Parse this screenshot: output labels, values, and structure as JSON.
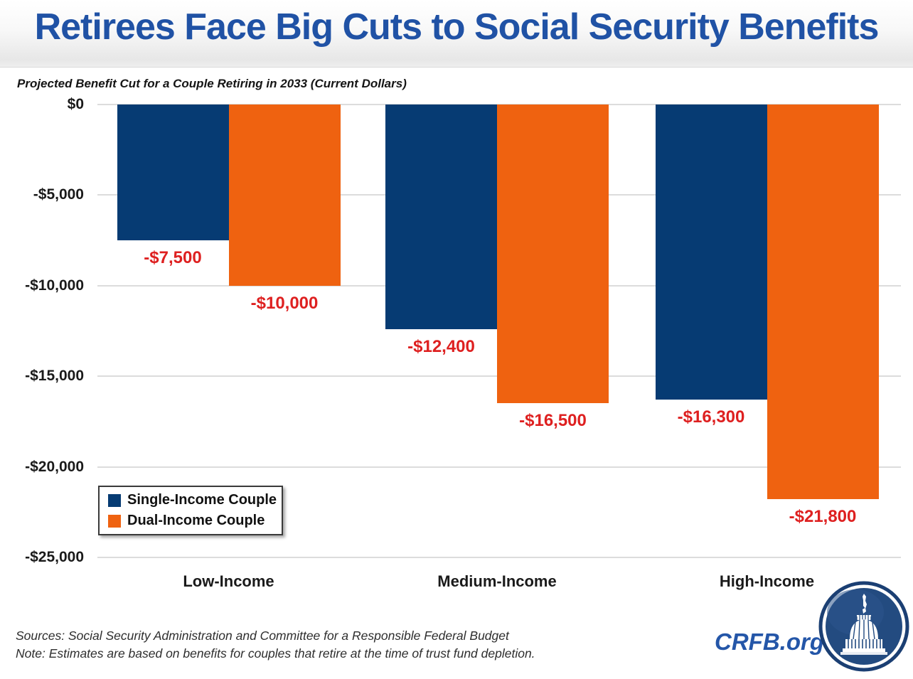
{
  "header": {
    "title": "Retirees Face Big Cuts to Social Security Benefits"
  },
  "subtitle": "Projected Benefit Cut for a Couple Retiring in 2033 (Current Dollars)",
  "footer": {
    "sources": "Sources: Social Security Administration and Committee for a Responsible Federal Budget",
    "note": "Note: Estimates are based on benefits for couples that retire at the time of trust fund depletion."
  },
  "branding": {
    "site": "CRFB.org",
    "logo_icon": "capitol-dome-icon"
  },
  "colors": {
    "title_blue": "#2052A5",
    "bar_blue": "#063B73",
    "bar_orange": "#EF6210",
    "value_label_red": "#DE2020",
    "gridline_gray": "#DCDCDC",
    "crfb_blue": "#2456A8",
    "logo_navy": "#1B3F73"
  },
  "chart_data": {
    "type": "bar",
    "title": "Projected Benefit Cut for a Couple Retiring in 2033 (Current Dollars)",
    "categories": [
      "Low-Income",
      "Medium-Income",
      "High-Income"
    ],
    "series": [
      {
        "name": "Single-Income Couple",
        "color": "#063B73",
        "values": [
          -7500,
          -12400,
          -16300
        ],
        "labels": [
          "-$7,500",
          "-$12,400",
          "-$16,300"
        ]
      },
      {
        "name": "Dual-Income Couple",
        "color": "#EF6210",
        "values": [
          -10000,
          -16500,
          -21800
        ],
        "labels": [
          "-$10,000",
          "-$16,500",
          "-$21,800"
        ]
      }
    ],
    "xlabel": "",
    "ylabel": "",
    "ylim": [
      -25000,
      0
    ],
    "yticks": [
      {
        "value": 0,
        "label": "$0"
      },
      {
        "value": -5000,
        "label": "-$5,000"
      },
      {
        "value": -10000,
        "label": "-$10,000"
      },
      {
        "value": -15000,
        "label": "-$15,000"
      },
      {
        "value": -20000,
        "label": "-$20,000"
      },
      {
        "value": -25000,
        "label": "-$25,000"
      }
    ],
    "grid": "horizontal",
    "legend_position": "bottom-left",
    "value_label_color": "#DE2020"
  }
}
